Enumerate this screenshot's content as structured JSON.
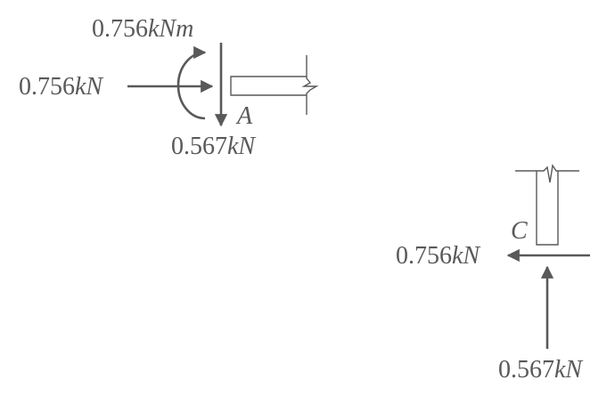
{
  "joint_a": {
    "moment": {
      "value": "0.756",
      "unit": "kNm"
    },
    "horizontal_force": {
      "value": "0.756",
      "unit": "kN"
    },
    "vertical_force": {
      "value": "0.567",
      "unit": "kN"
    },
    "point_label": "A"
  },
  "joint_c": {
    "horizontal_force": {
      "value": "0.756",
      "unit": "kN"
    },
    "vertical_force": {
      "value": "0.567",
      "unit": "kN"
    },
    "point_label": "C"
  },
  "colors": {
    "ink": "#595959",
    "background": "#ffffff"
  }
}
